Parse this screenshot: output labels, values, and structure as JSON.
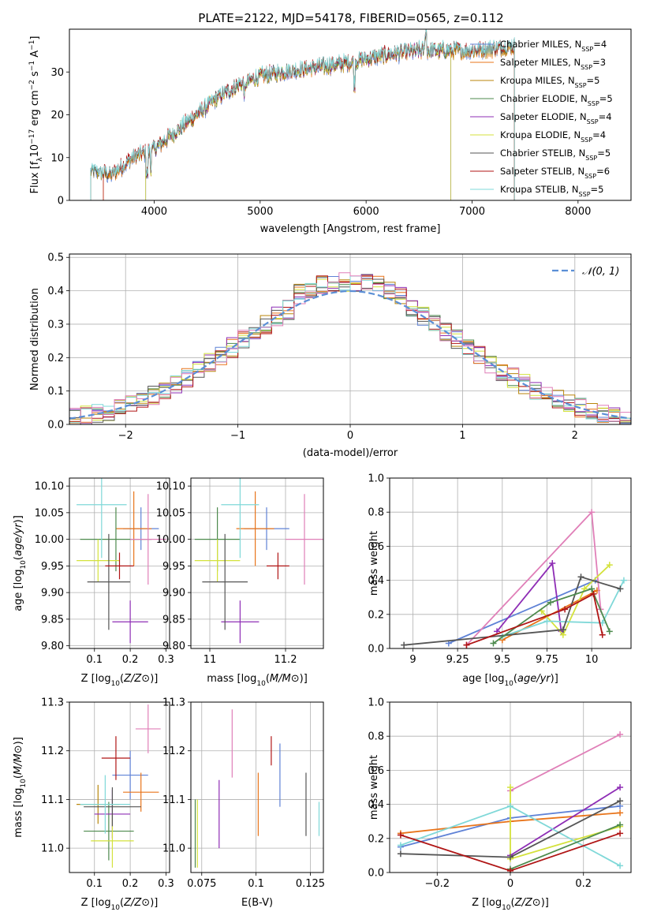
{
  "figure": {
    "title": "PLATE=2122, MJD=54178, FIBERID=0565, z=0.112"
  },
  "chart_data": [
    {
      "id": "spectrum",
      "type": "line",
      "xlabel": "wavelength [Angstrom, rest frame]",
      "ylabel": "Flux [f_λ 10^-17 erg cm^-2 s^-1 A^-1]",
      "ylabel_parts": [
        "Flux [f",
        "λ",
        "10",
        "−17",
        " erg cm",
        "−2",
        " s",
        "−1",
        " A",
        "−1",
        "]"
      ],
      "xlim": [
        3200,
        8500
      ],
      "ylim": [
        0,
        40
      ],
      "xticks": [
        4000,
        5000,
        6000,
        7000,
        8000
      ],
      "yticks": [
        0,
        10,
        20,
        30
      ],
      "grid": false,
      "legend_position": "right",
      "series": [
        {
          "name": "Chabrier MILES, N_SSP=4",
          "label_main": "Chabrier MILES, N",
          "label_sub": "SSP",
          "label_end": "=4",
          "color": "#5f82d6",
          "wmin": 3400,
          "wmax": 7400
        },
        {
          "name": "Salpeter MILES, N_SSP=3",
          "label_main": "Salpeter MILES, N",
          "label_sub": "SSP",
          "label_end": "=3",
          "color": "#e8741a",
          "wmin": 3520,
          "wmax": 7400
        },
        {
          "name": "Kroupa MILES, N_SSP=5",
          "label_main": "Kroupa MILES, N",
          "label_sub": "SSP",
          "label_end": "=5",
          "color": "#b8860b",
          "wmin": 3400,
          "wmax": 7400
        },
        {
          "name": "Chabrier ELODIE, N_SSP=5",
          "label_main": "Chabrier ELODIE, N",
          "label_sub": "SSP",
          "label_end": "=5",
          "color": "#4d8a4d",
          "wmin": 3920,
          "wmax": 6800
        },
        {
          "name": "Salpeter ELODIE, N_SSP=4",
          "label_main": "Salpeter ELODIE, N",
          "label_sub": "SSP",
          "label_end": "=4",
          "color": "#8e2db5",
          "wmin": 3920,
          "wmax": 6800
        },
        {
          "name": "Kroupa ELODIE, N_SSP=4",
          "label_main": "Kroupa ELODIE, N",
          "label_sub": "SSP",
          "label_end": "=4",
          "color": "#d4e23c",
          "wmin": 3920,
          "wmax": 6800
        },
        {
          "name": "Chabrier STELIB, N_SSP=5",
          "label_main": "Chabrier STELIB, N",
          "label_sub": "SSP",
          "label_end": "=5",
          "color": "#555555",
          "wmin": 3400,
          "wmax": 7400
        },
        {
          "name": "Salpeter STELIB, N_SSP=6",
          "label_main": "Salpeter STELIB, N",
          "label_sub": "SSP",
          "label_end": "=6",
          "color": "#b01515",
          "wmin": 3520,
          "wmax": 7400
        },
        {
          "name": "Kroupa STELIB, N_SSP=5",
          "label_main": "Kroupa STELIB, N",
          "label_sub": "SSP",
          "label_end": "=5",
          "color": "#7fd8d8",
          "wmin": 3400,
          "wmax": 7400
        }
      ],
      "continuum_anchor_points": [
        [
          3400,
          7
        ],
        [
          3600,
          6
        ],
        [
          3800,
          10
        ],
        [
          4000,
          12
        ],
        [
          4200,
          16
        ],
        [
          4400,
          20
        ],
        [
          4600,
          24
        ],
        [
          4800,
          27
        ],
        [
          5000,
          29
        ],
        [
          5200,
          30
        ],
        [
          5500,
          31
        ],
        [
          5800,
          32
        ],
        [
          6000,
          33
        ],
        [
          6200,
          34
        ],
        [
          6500,
          35
        ],
        [
          6700,
          35
        ],
        [
          7000,
          35
        ],
        [
          7400,
          36
        ]
      ]
    },
    {
      "id": "residuals",
      "type": "line",
      "xlabel": "(data-model)/error",
      "ylabel": "Normed distribution",
      "xlim": [
        -2.5,
        2.5
      ],
      "ylim": [
        0,
        0.51
      ],
      "xticks": [
        -2,
        -1,
        0,
        1,
        2
      ],
      "yticks": [
        0.0,
        0.1,
        0.2,
        0.3,
        0.4,
        0.5
      ],
      "grid": true,
      "legend_position": "top-right",
      "legend": [
        {
          "name": "𝒩(0, 1)",
          "style": "dashed",
          "color": "#5b8fd6"
        }
      ],
      "hist_bin_width": 0.1,
      "series_colors": [
        "#5f82d6",
        "#e8741a",
        "#b8860b",
        "#4d8a4d",
        "#8e2db5",
        "#d4e23c",
        "#555555",
        "#b01515",
        "#7fd8d8",
        "#e07fb8"
      ]
    },
    {
      "id": "age-vs-Z",
      "type": "scatter",
      "xlabel": "Z [log10(Z/Z⊙)]",
      "ylabel": "age  [log10(age/yr)]",
      "xlim": [
        0.03,
        0.31
      ],
      "ylim": [
        9.795,
        10.115
      ],
      "xticks": [
        0.1,
        0.2,
        0.3
      ],
      "yticks": [
        9.8,
        9.85,
        9.9,
        9.95,
        10.0,
        10.05,
        10.1
      ],
      "grid": true,
      "points": [
        {
          "x": 0.23,
          "y": 10.02,
          "xerr": 0.05,
          "yerr": 0.04,
          "color": "#5f82d6"
        },
        {
          "x": 0.21,
          "y": 10.02,
          "xerr": 0.05,
          "yerr": 0.07,
          "color": "#e8741a"
        },
        {
          "x": 0.16,
          "y": 10.0,
          "xerr": 0.1,
          "yerr": 0.06,
          "color": "#4d8a4d"
        },
        {
          "x": 0.2,
          "y": 9.845,
          "xerr": 0.05,
          "yerr": 0.04,
          "color": "#8e2db5"
        },
        {
          "x": 0.11,
          "y": 9.96,
          "xerr": 0.06,
          "yerr": 0.04,
          "color": "#d4e23c"
        },
        {
          "x": 0.14,
          "y": 9.92,
          "xerr": 0.06,
          "yerr": 0.09,
          "color": "#555555"
        },
        {
          "x": 0.17,
          "y": 9.95,
          "xerr": 0.04,
          "yerr": 0.025,
          "color": "#b01515"
        },
        {
          "x": 0.12,
          "y": 10.065,
          "xerr": 0.07,
          "yerr": 0.1,
          "color": "#7fd8d8"
        },
        {
          "x": 0.25,
          "y": 10.0,
          "xerr": 0.05,
          "yerr": 0.085,
          "color": "#e07fb8"
        }
      ]
    },
    {
      "id": "age-vs-mass",
      "type": "scatter",
      "xlabel": "mass [log10(M/M⊙)]",
      "ylabel": "",
      "xlim": [
        10.95,
        11.3
      ],
      "ylim": [
        9.795,
        10.115
      ],
      "xticks": [
        11.0,
        11.2
      ],
      "yticks": [
        9.8,
        9.85,
        9.9,
        9.95,
        10.0,
        10.05,
        10.1
      ],
      "grid": true,
      "points": [
        {
          "x": 11.15,
          "y": 10.02,
          "xerr": 0.06,
          "yerr": 0.04,
          "color": "#5f82d6"
        },
        {
          "x": 11.12,
          "y": 10.02,
          "xerr": 0.05,
          "yerr": 0.07,
          "color": "#e8741a"
        },
        {
          "x": 11.02,
          "y": 10.0,
          "xerr": 0.06,
          "yerr": 0.06,
          "color": "#4d8a4d"
        },
        {
          "x": 11.08,
          "y": 9.845,
          "xerr": 0.05,
          "yerr": 0.04,
          "color": "#8e2db5"
        },
        {
          "x": 11.02,
          "y": 9.96,
          "xerr": 0.06,
          "yerr": 0.04,
          "color": "#d4e23c"
        },
        {
          "x": 11.04,
          "y": 9.92,
          "xerr": 0.06,
          "yerr": 0.09,
          "color": "#555555"
        },
        {
          "x": 11.18,
          "y": 9.95,
          "xerr": 0.03,
          "yerr": 0.025,
          "color": "#b01515"
        },
        {
          "x": 11.08,
          "y": 10.065,
          "xerr": 0.05,
          "yerr": 0.1,
          "color": "#7fd8d8"
        },
        {
          "x": 11.25,
          "y": 10.0,
          "xerr": 0.05,
          "yerr": 0.085,
          "color": "#e07fb8"
        }
      ]
    },
    {
      "id": "mass-weight-vs-age",
      "type": "line",
      "xlabel": "age  [log10(age/yr)]",
      "ylabel": "mass weight",
      "xlim": [
        8.87,
        10.22
      ],
      "ylim": [
        0,
        1
      ],
      "xticks": [
        9.0,
        9.25,
        9.5,
        9.75,
        10.0
      ],
      "yticks": [
        0.0,
        0.2,
        0.4,
        0.6,
        0.8,
        1.0
      ],
      "grid": true,
      "series": [
        {
          "color": "#5f82d6",
          "points": [
            [
              9.2,
              0.03
            ],
            [
              10.02,
              0.4
            ]
          ]
        },
        {
          "color": "#e8741a",
          "points": [
            [
              9.5,
              0.05
            ],
            [
              10.03,
              0.34
            ]
          ]
        },
        {
          "color": "#e07fb8",
          "points": [
            [
              9.3,
              0.02
            ],
            [
              10.0,
              0.8
            ],
            [
              10.05,
              0.23
            ]
          ]
        },
        {
          "color": "#8e2db5",
          "points": [
            [
              9.47,
              0.1
            ],
            [
              9.78,
              0.5
            ],
            [
              9.83,
              0.1
            ]
          ]
        },
        {
          "color": "#d4e23c",
          "points": [
            [
              9.72,
              0.22
            ],
            [
              9.84,
              0.08
            ],
            [
              9.96,
              0.35
            ],
            [
              10.1,
              0.49
            ]
          ]
        },
        {
          "color": "#7fd8d8",
          "points": [
            [
              9.5,
              0.07
            ],
            [
              9.75,
              0.16
            ],
            [
              10.06,
              0.15
            ],
            [
              10.18,
              0.4
            ]
          ]
        },
        {
          "color": "#555555",
          "points": [
            [
              8.95,
              0.02
            ],
            [
              9.84,
              0.11
            ],
            [
              9.94,
              0.42
            ],
            [
              10.16,
              0.35
            ]
          ]
        },
        {
          "color": "#4d8a4d",
          "points": [
            [
              9.45,
              0.03
            ],
            [
              9.77,
              0.27
            ],
            [
              10.0,
              0.35
            ],
            [
              10.1,
              0.1
            ]
          ]
        },
        {
          "color": "#b01515",
          "points": [
            [
              9.3,
              0.02
            ],
            [
              9.85,
              0.23
            ],
            [
              10.01,
              0.32
            ],
            [
              10.06,
              0.08
            ]
          ]
        }
      ]
    },
    {
      "id": "mass-vs-Z",
      "type": "scatter",
      "xlabel": "Z [log10(Z/Z⊙)]",
      "ylabel": "mass [log10(M/M⊙)]",
      "xlim": [
        0.03,
        0.31
      ],
      "ylim": [
        10.95,
        11.3
      ],
      "xticks": [
        0.1,
        0.2,
        0.3
      ],
      "yticks": [
        11.0,
        11.1,
        11.2,
        11.3
      ],
      "grid": true,
      "points": [
        {
          "x": 0.2,
          "y": 11.15,
          "xerr": 0.05,
          "yerr": 0.05,
          "color": "#5f82d6"
        },
        {
          "x": 0.23,
          "y": 11.115,
          "xerr": 0.05,
          "yerr": 0.04,
          "color": "#e8741a"
        },
        {
          "x": 0.11,
          "y": 11.09,
          "xerr": 0.06,
          "yerr": 0.04,
          "color": "#b8860b"
        },
        {
          "x": 0.14,
          "y": 11.035,
          "xerr": 0.07,
          "yerr": 0.06,
          "color": "#4d8a4d"
        },
        {
          "x": 0.15,
          "y": 11.07,
          "xerr": 0.05,
          "yerr": 0.05,
          "color": "#8e2db5"
        },
        {
          "x": 0.15,
          "y": 11.015,
          "xerr": 0.06,
          "yerr": 0.055,
          "color": "#d4e23c"
        },
        {
          "x": 0.15,
          "y": 11.085,
          "xerr": 0.08,
          "yerr": 0.04,
          "color": "#555555"
        },
        {
          "x": 0.16,
          "y": 11.185,
          "xerr": 0.04,
          "yerr": 0.045,
          "color": "#b01515"
        },
        {
          "x": 0.13,
          "y": 11.09,
          "xerr": 0.07,
          "yerr": 0.06,
          "color": "#7fd8d8"
        },
        {
          "x": 0.25,
          "y": 11.245,
          "xerr": 0.035,
          "yerr": 0.05,
          "color": "#e07fb8"
        }
      ]
    },
    {
      "id": "mass-vs-EBV",
      "type": "scatter",
      "xlabel": "E(B-V)",
      "ylabel": "",
      "xlim": [
        0.07,
        0.131
      ],
      "ylim": [
        10.95,
        11.3
      ],
      "xticks": [
        0.075,
        0.1,
        0.125
      ],
      "yticks": [
        11.0,
        11.1,
        11.2,
        11.3
      ],
      "grid": true,
      "points": [
        {
          "x": 0.111,
          "y": 11.15,
          "yerr": 0.065,
          "color": "#5f82d6"
        },
        {
          "x": 0.101,
          "y": 11.09,
          "yerr": 0.065,
          "color": "#e8741a"
        },
        {
          "x": 0.083,
          "y": 11.07,
          "yerr": 0.07,
          "color": "#8e2db5"
        },
        {
          "x": 0.073,
          "y": 11.03,
          "yerr": 0.07,
          "color": "#d4e23c"
        },
        {
          "x": 0.123,
          "y": 11.09,
          "yerr": 0.065,
          "color": "#555555"
        },
        {
          "x": 0.107,
          "y": 11.2,
          "yerr": 0.03,
          "color": "#b01515"
        },
        {
          "x": 0.129,
          "y": 11.06,
          "yerr": 0.035,
          "color": "#7fd8d8"
        },
        {
          "x": 0.089,
          "y": 11.215,
          "yerr": 0.07,
          "color": "#e07fb8"
        },
        {
          "x": 0.072,
          "y": 11.03,
          "yerr": 0.07,
          "color": "#4d8a4d"
        }
      ]
    },
    {
      "id": "mass-weight-vs-Z",
      "type": "line",
      "xlabel": "Z [log10(Z/Z⊙)]",
      "ylabel": "mass weight",
      "xlim": [
        -0.33,
        0.33
      ],
      "ylim": [
        0,
        1
      ],
      "xticks": [
        -0.2,
        0.0,
        0.2
      ],
      "yticks": [
        0.0,
        0.2,
        0.4,
        0.6,
        0.8,
        1.0
      ],
      "grid": true,
      "series": [
        {
          "color": "#5f82d6",
          "points": [
            [
              -0.3,
              0.15
            ],
            [
              0.0,
              0.32
            ],
            [
              0.3,
              0.39
            ]
          ]
        },
        {
          "color": "#e8741a",
          "points": [
            [
              -0.3,
              0.23
            ],
            [
              0.0,
              0.3
            ],
            [
              0.3,
              0.35
            ]
          ]
        },
        {
          "color": "#e07fb8",
          "points": [
            [
              0.0,
              0.48
            ],
            [
              0.3,
              0.81
            ]
          ]
        },
        {
          "color": "#8e2db5",
          "points": [
            [
              0.0,
              0.1
            ],
            [
              0.3,
              0.5
            ]
          ]
        },
        {
          "color": "#d4e23c",
          "points": [
            [
              0.0,
              0.5
            ],
            [
              0.0,
              0.08
            ],
            [
              0.3,
              0.27
            ]
          ]
        },
        {
          "color": "#7fd8d8",
          "points": [
            [
              -0.3,
              0.16
            ],
            [
              0.0,
              0.39
            ],
            [
              0.3,
              0.04
            ]
          ]
        },
        {
          "color": "#555555",
          "points": [
            [
              -0.3,
              0.11
            ],
            [
              0.0,
              0.09
            ],
            [
              0.3,
              0.42
            ]
          ]
        },
        {
          "color": "#4d8a4d",
          "points": [
            [
              0.0,
              0.02
            ],
            [
              0.3,
              0.28
            ]
          ]
        },
        {
          "color": "#b01515",
          "points": [
            [
              -0.3,
              0.22
            ],
            [
              0.0,
              0.01
            ],
            [
              0.3,
              0.23
            ]
          ]
        }
      ]
    }
  ]
}
